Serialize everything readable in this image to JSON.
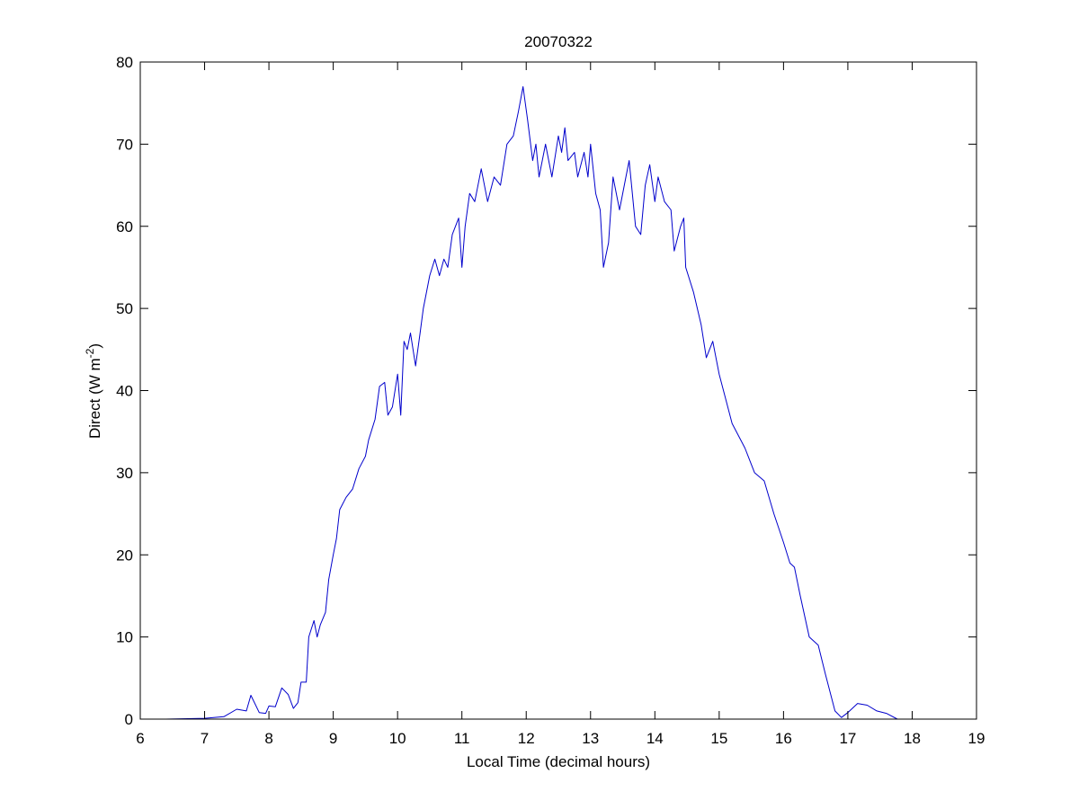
{
  "chart_data": {
    "type": "line",
    "title": "20070322",
    "xlabel": "Local Time (decimal hours)",
    "ylabel": {
      "base": "Direct (W m",
      "sup": "-2",
      "end": ")"
    },
    "xlim": [
      6,
      19
    ],
    "ylim": [
      0,
      80
    ],
    "xticks": [
      6,
      7,
      8,
      9,
      10,
      11,
      12,
      13,
      14,
      15,
      16,
      17,
      18,
      19
    ],
    "yticks": [
      0,
      10,
      20,
      30,
      40,
      50,
      60,
      70,
      80
    ],
    "grid": false,
    "line_color": "#0000cc",
    "series": [
      {
        "name": "Direct",
        "x": [
          6.4,
          7.0,
          7.3,
          7.5,
          7.65,
          7.72,
          7.85,
          7.95,
          8.0,
          8.1,
          8.2,
          8.3,
          8.38,
          8.45,
          8.5,
          8.58,
          8.62,
          8.7,
          8.75,
          8.8,
          8.88,
          8.93,
          9.0,
          9.05,
          9.1,
          9.2,
          9.3,
          9.4,
          9.5,
          9.55,
          9.65,
          9.72,
          9.8,
          9.85,
          9.92,
          10.0,
          10.05,
          10.1,
          10.15,
          10.2,
          10.28,
          10.35,
          10.4,
          10.5,
          10.58,
          10.65,
          10.72,
          10.78,
          10.85,
          10.95,
          11.0,
          11.05,
          11.12,
          11.2,
          11.3,
          11.4,
          11.5,
          11.6,
          11.7,
          11.8,
          11.88,
          11.95,
          12.02,
          12.1,
          12.15,
          12.2,
          12.3,
          12.4,
          12.5,
          12.55,
          12.6,
          12.65,
          12.75,
          12.8,
          12.9,
          12.96,
          13.0,
          13.08,
          13.15,
          13.2,
          13.28,
          13.35,
          13.45,
          13.55,
          13.6,
          13.7,
          13.78,
          13.85,
          13.92,
          14.0,
          14.05,
          14.15,
          14.25,
          14.3,
          14.4,
          14.45,
          14.48,
          14.6,
          14.72,
          14.8,
          14.9,
          15.0,
          15.1,
          15.2,
          15.4,
          15.55,
          15.7,
          15.85,
          16.0,
          16.1,
          16.17,
          16.26,
          16.4,
          16.54,
          16.65,
          16.8,
          16.9,
          17.0,
          17.15,
          17.3,
          17.45,
          17.6,
          17.77
        ],
        "y": [
          0,
          0.1,
          0.3,
          1.2,
          1.0,
          2.9,
          0.8,
          0.7,
          1.6,
          1.5,
          3.8,
          3.0,
          1.3,
          2.0,
          4.5,
          4.5,
          10,
          12,
          10,
          11.5,
          13,
          17,
          20,
          22,
          25.5,
          27,
          28,
          30.5,
          32,
          34,
          36.5,
          40.5,
          41,
          37,
          38,
          42,
          37,
          46,
          45,
          47,
          43,
          47,
          50,
          54,
          56,
          54,
          56,
          55,
          59,
          61,
          55,
          60,
          64,
          63,
          67,
          63,
          66,
          65,
          70,
          71,
          74,
          77,
          73,
          68,
          70,
          66,
          70,
          66,
          71,
          69,
          72,
          68,
          69,
          66,
          69,
          66,
          70,
          64,
          62,
          55,
          58,
          66,
          62,
          66,
          68,
          60,
          59,
          65,
          67.5,
          63,
          66,
          63,
          62,
          57,
          60,
          61,
          55,
          52,
          48,
          44,
          46,
          42,
          39,
          36,
          33,
          30,
          29,
          25,
          21.5,
          19,
          18.5,
          15,
          10,
          9,
          5.5,
          1,
          0.2,
          0.8,
          1.9,
          1.7,
          1,
          0.7,
          0
        ]
      }
    ]
  }
}
